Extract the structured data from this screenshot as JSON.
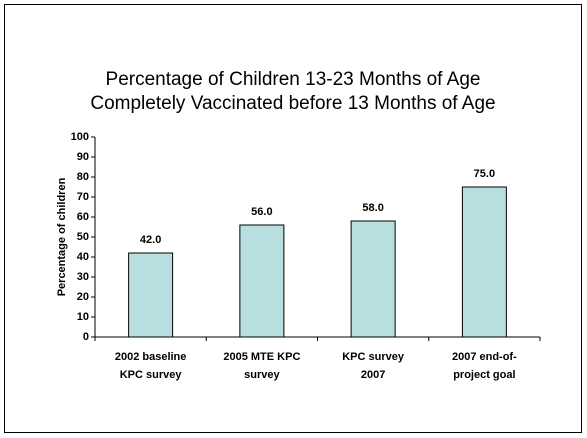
{
  "chart_data": {
    "type": "bar",
    "title": [
      "Percentage of Children 13-23 Months of Age",
      "Completely Vaccinated before 13 Months of Age"
    ],
    "y_label": "Percentage of children",
    "categories": [
      [
        "2002 baseline",
        "KPC survey"
      ],
      [
        "2005 MTE KPC",
        "survey"
      ],
      [
        "KPC survey",
        "2007"
      ],
      [
        "2007 end-of-",
        "project goal"
      ]
    ],
    "values": [
      42,
      56,
      58,
      75
    ],
    "value_labels": [
      "42.0",
      "56.0",
      "58.0",
      "75.0"
    ],
    "color": "#b7dfe0",
    "ylim": [
      0,
      100
    ],
    "yticks": [
      0,
      10,
      20,
      30,
      40,
      50,
      60,
      70,
      80,
      90,
      100
    ]
  }
}
